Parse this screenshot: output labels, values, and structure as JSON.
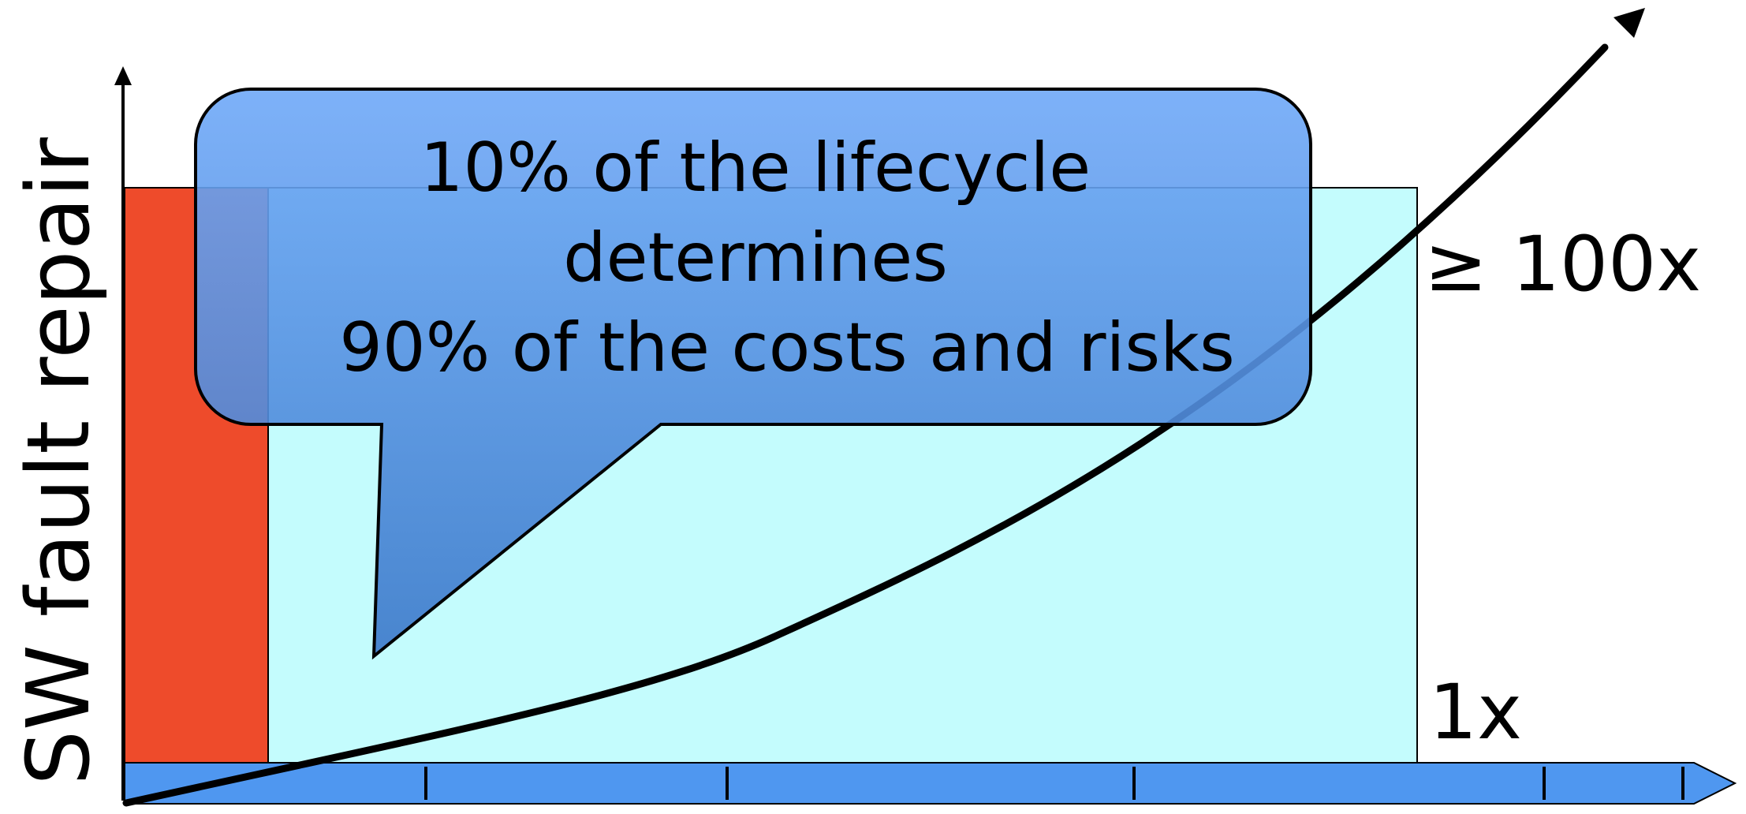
{
  "y_axis": {
    "label": "SW fault repair"
  },
  "markers": {
    "high": "≥ 100x",
    "low": "1x"
  },
  "callout": {
    "lines": [
      "10% of the lifecycle",
      "determines",
      "90% of the costs and risks"
    ]
  },
  "colors": {
    "early_phase": "#EE4B2B",
    "lifecycle_region": "#C4FCFD",
    "timeline_bar": "#4F97F0",
    "callout_top": "#6FA9F8",
    "callout_bottom": "#3B78C9",
    "curve": "#000000"
  }
}
